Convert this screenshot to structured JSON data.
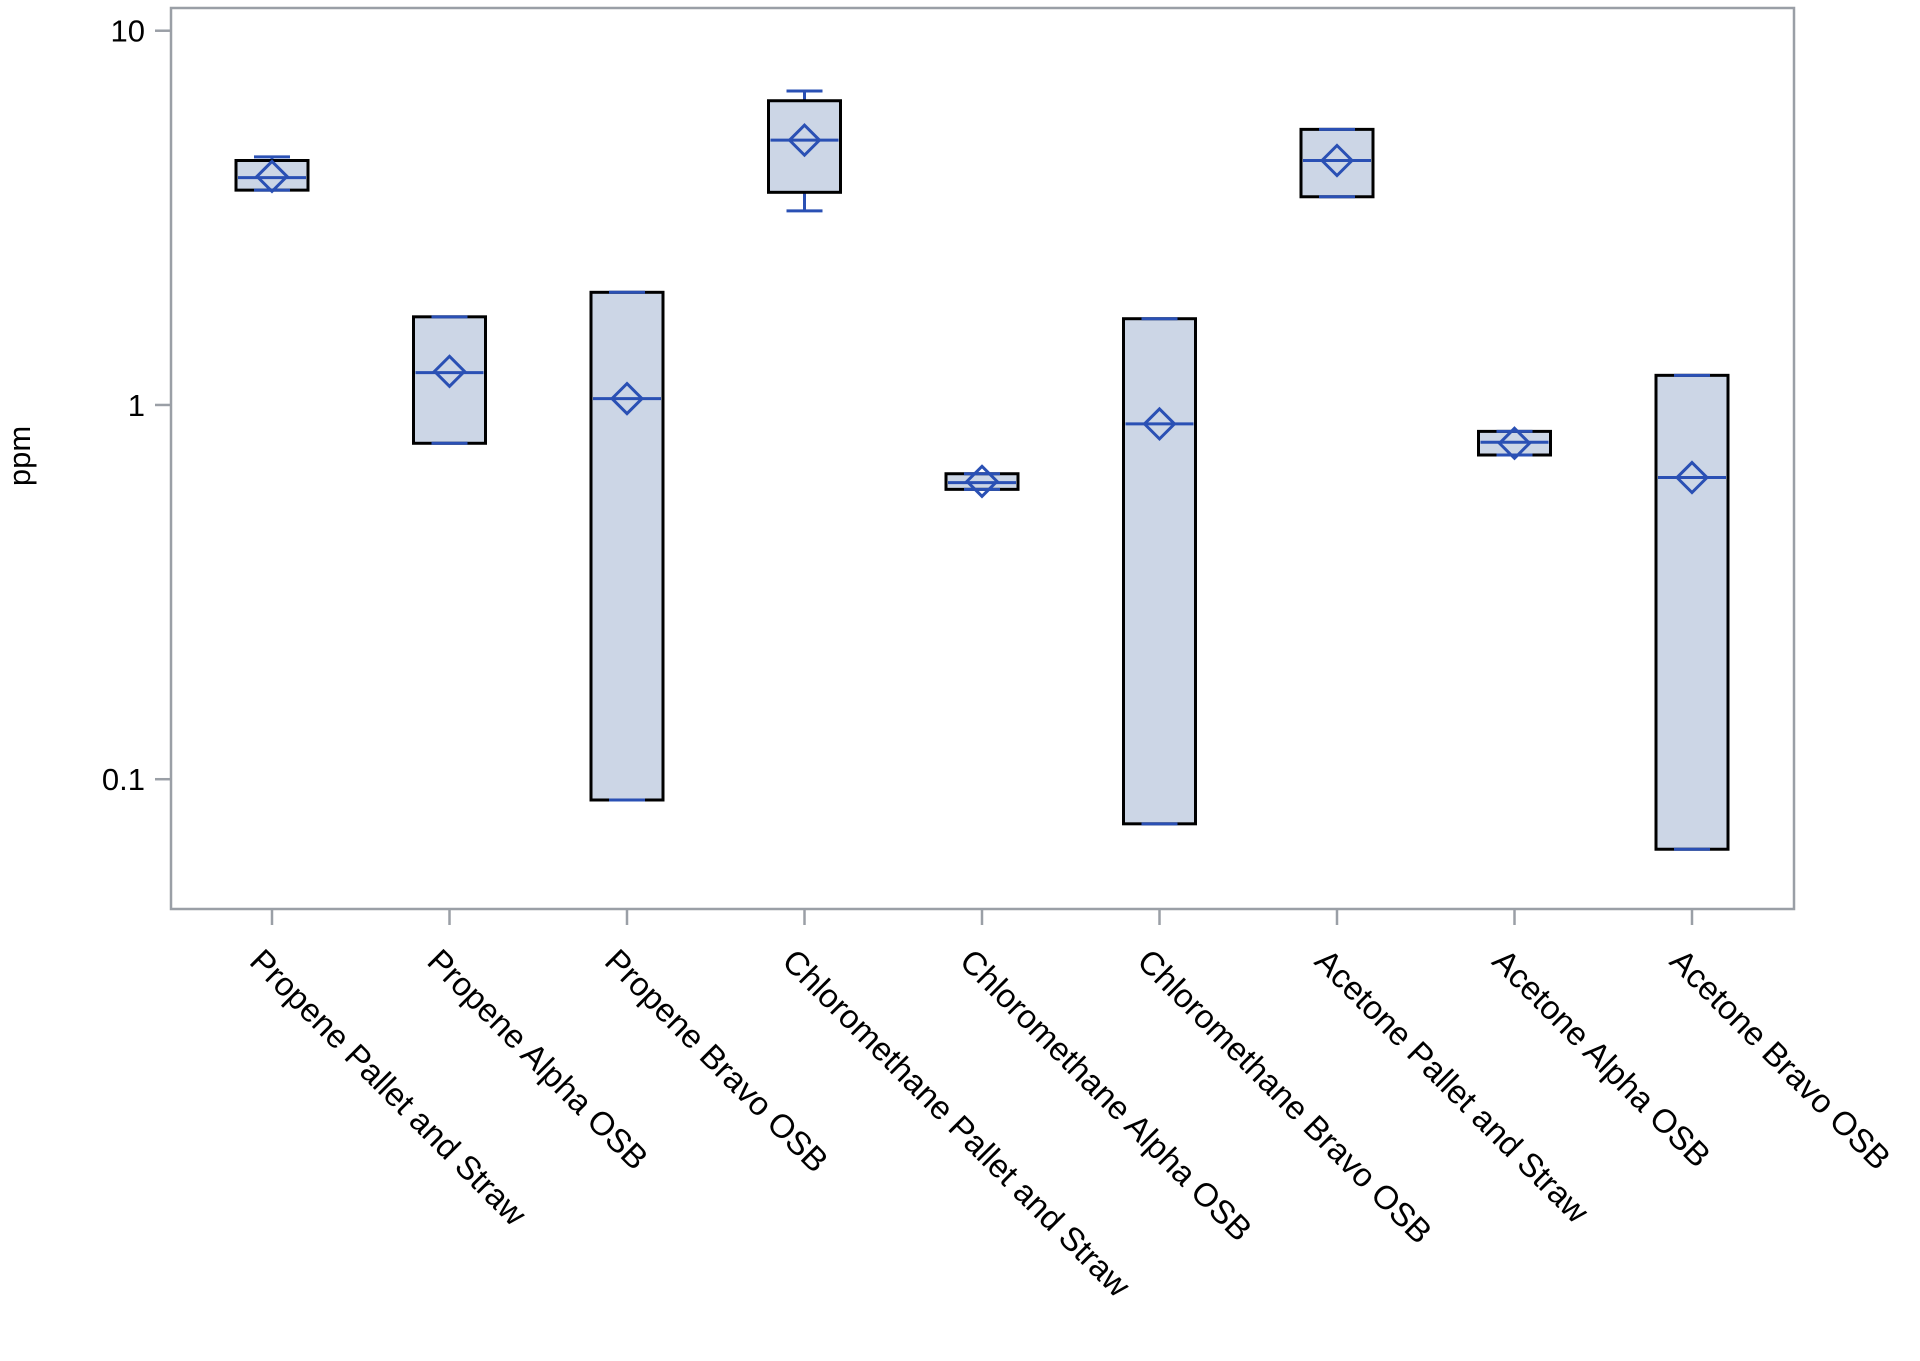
{
  "chart_data": {
    "type": "box",
    "ylabel": "ppm",
    "yscale": "log",
    "ylim": [
      0.045,
      11.5
    ],
    "yticks": [
      {
        "value": 10,
        "label": "10"
      },
      {
        "value": 1,
        "label": "1"
      },
      {
        "value": 0.1,
        "label": "0.1"
      }
    ],
    "grid": false,
    "colors": {
      "box_fill": "#ccd6e6",
      "box_stroke": "#000000",
      "median": "#2a50b4",
      "mean_marker": "#2a50b4",
      "whisker": "#2a50b4",
      "frame": "#9a9fa6"
    },
    "categories": [
      "Propene Pallet and Straw",
      "Propene Alpha OSB",
      "Propene Bravo OSB",
      "Chloromethane Pallet and Straw",
      "Chloromethane Alpha OSB",
      "Chloromethane Bravo OSB",
      "Acetone Pallet and Straw",
      "Acetone Alpha OSB",
      "Acetone Bravo OSB"
    ],
    "boxes": [
      {
        "min": 3.75,
        "q1": 3.75,
        "median": 4.05,
        "q3": 4.5,
        "max": 4.6,
        "mean": 4.08
      },
      {
        "min": 0.79,
        "q1": 0.79,
        "median": 1.22,
        "q3": 1.72,
        "max": 1.72,
        "mean": 1.23
      },
      {
        "min": 0.088,
        "q1": 0.088,
        "median": 1.04,
        "q3": 2.0,
        "max": 2.0,
        "mean": 1.04
      },
      {
        "min": 3.3,
        "q1": 3.7,
        "median": 5.1,
        "q3": 6.5,
        "max": 6.9,
        "mean": 5.1
      },
      {
        "min": 0.595,
        "q1": 0.595,
        "median": 0.62,
        "q3": 0.655,
        "max": 0.655,
        "mean": 0.625
      },
      {
        "min": 0.076,
        "q1": 0.076,
        "median": 0.89,
        "q3": 1.7,
        "max": 1.7,
        "mean": 0.89
      },
      {
        "min": 3.6,
        "q1": 3.6,
        "median": 4.5,
        "q3": 5.45,
        "max": 5.45,
        "mean": 4.5
      },
      {
        "min": 0.735,
        "q1": 0.735,
        "median": 0.795,
        "q3": 0.85,
        "max": 0.85,
        "mean": 0.79
      },
      {
        "min": 0.065,
        "q1": 0.065,
        "median": 0.64,
        "q3": 1.2,
        "max": 1.2,
        "mean": 0.64
      }
    ]
  }
}
